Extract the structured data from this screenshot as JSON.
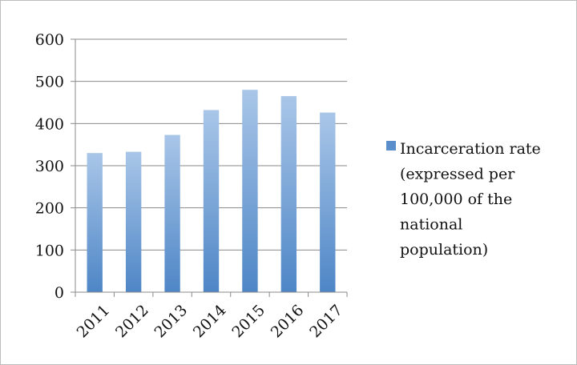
{
  "chart_data": {
    "type": "bar",
    "categories": [
      "2011",
      "2012",
      "2013",
      "2014",
      "2015",
      "2016",
      "2017"
    ],
    "series": [
      {
        "name": "Incarceration rate (expressed per 100,000 of the national population)",
        "values": [
          330,
          333,
          373,
          432,
          480,
          465,
          426
        ]
      }
    ],
    "ylim": [
      0,
      600
    ],
    "yticks": [
      0,
      100,
      200,
      300,
      400,
      500,
      600
    ],
    "grid": true,
    "legend_position": "right",
    "legend_lines": [
      "Incarceration rate",
      "(expressed per",
      "100,000 of the",
      "national",
      "population)"
    ],
    "colors": {
      "bar_top": "#a9c6e8",
      "bar_bottom": "#4e86c6",
      "legend_swatch": "#5a8fcb",
      "gridline": "#8a8a8a",
      "axis": "#8a8a8a"
    }
  }
}
